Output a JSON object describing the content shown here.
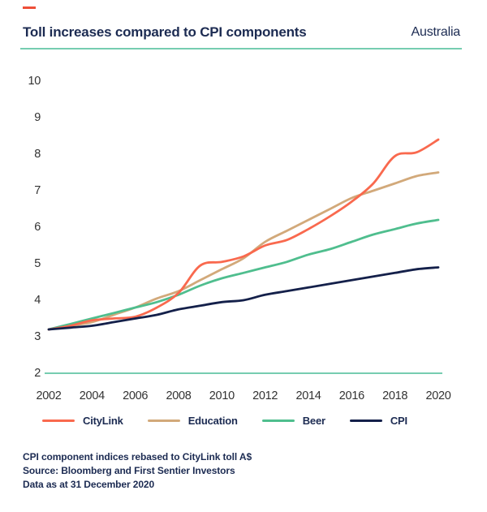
{
  "brand": {
    "dash_color": "#EE4F38"
  },
  "header": {
    "title": "Toll increases compared to CPI components",
    "region": "Australia",
    "rule_color": "#76CDB0"
  },
  "chart_data": {
    "type": "line",
    "x": [
      2002,
      2003,
      2004,
      2005,
      2006,
      2007,
      2008,
      2009,
      2010,
      2011,
      2012,
      2013,
      2014,
      2015,
      2016,
      2017,
      2018,
      2019,
      2020
    ],
    "series": [
      {
        "name": "CityLink",
        "color": "#F9694E",
        "values": [
          3.2,
          3.3,
          3.45,
          3.5,
          3.55,
          3.8,
          4.2,
          4.95,
          5.05,
          5.2,
          5.5,
          5.65,
          5.95,
          6.3,
          6.7,
          7.2,
          7.95,
          8.05,
          8.4
        ]
      },
      {
        "name": "Education",
        "color": "#D2A97A",
        "values": [
          3.2,
          3.3,
          3.4,
          3.6,
          3.8,
          4.05,
          4.25,
          4.55,
          4.85,
          5.15,
          5.6,
          5.9,
          6.2,
          6.5,
          6.8,
          7.0,
          7.2,
          7.4,
          7.5
        ]
      },
      {
        "name": "Beer",
        "color": "#4FBE8E",
        "values": [
          3.2,
          3.35,
          3.5,
          3.65,
          3.8,
          3.95,
          4.15,
          4.4,
          4.6,
          4.75,
          4.9,
          5.05,
          5.25,
          5.4,
          5.6,
          5.8,
          5.95,
          6.1,
          6.2
        ]
      },
      {
        "name": "CPI",
        "color": "#14204A",
        "values": [
          3.2,
          3.25,
          3.3,
          3.4,
          3.5,
          3.6,
          3.75,
          3.85,
          3.95,
          4.0,
          4.15,
          4.25,
          4.35,
          4.45,
          4.55,
          4.65,
          4.75,
          4.85,
          4.9
        ]
      }
    ],
    "ylim": [
      2,
      10
    ],
    "yticks": [
      10,
      9,
      8,
      7,
      6,
      5,
      4,
      3,
      2
    ],
    "xticks": [
      2002,
      2004,
      2006,
      2008,
      2010,
      2012,
      2014,
      2016,
      2018,
      2020
    ],
    "baseline_color": "#76CDB0",
    "grid": false,
    "legend_position": "bottom",
    "xlabel": "",
    "ylabel": ""
  },
  "footnotes": [
    "CPI component indices rebased to CityLink toll A$",
    "Source: Bloomberg and First Sentier Investors",
    "Data as at 31 December 2020"
  ]
}
